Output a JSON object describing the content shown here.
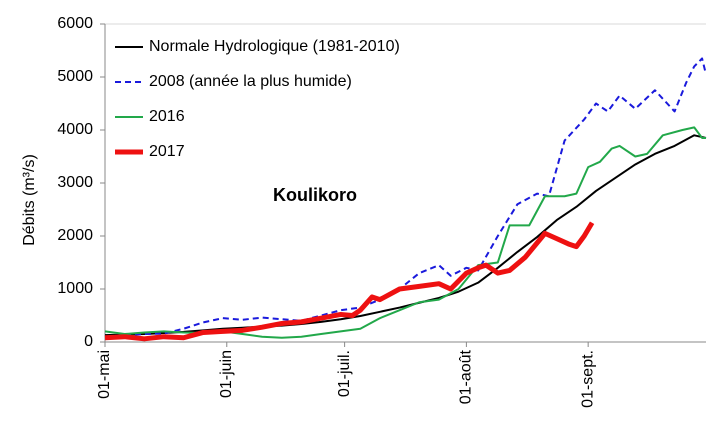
{
  "chart_data": {
    "type": "line",
    "title": "Koulikoro",
    "y_label": "Débits  (m³/s)",
    "xlim": [
      0,
      153
    ],
    "ylim": [
      0,
      6000
    ],
    "yticks": [
      0,
      1000,
      2000,
      3000,
      4000,
      5000,
      6000
    ],
    "xticks": [
      {
        "value": 0,
        "label": "01-mai"
      },
      {
        "value": 31,
        "label": "01-juin"
      },
      {
        "value": 61,
        "label": "01-juil."
      },
      {
        "value": 92,
        "label": "01-août"
      },
      {
        "value": 123,
        "label": "01-sept."
      }
    ],
    "grid": false,
    "legend": "upper left",
    "series": [
      {
        "name": "Normale Hydrologique (1981-2010)",
        "color": "#000000",
        "line_style": "solid",
        "linewidth": 2,
        "x": [
          0,
          5,
          10,
          15,
          20,
          25,
          30,
          35,
          40,
          45,
          50,
          55,
          60,
          65,
          70,
          75,
          80,
          85,
          90,
          95,
          100,
          105,
          110,
          115,
          120,
          125,
          130,
          135,
          140,
          145,
          150,
          153
        ],
        "values": [
          130,
          140,
          150,
          170,
          190,
          220,
          250,
          270,
          290,
          310,
          340,
          380,
          430,
          490,
          570,
          650,
          740,
          830,
          950,
          1120,
          1400,
          1700,
          1980,
          2300,
          2550,
          2850,
          3100,
          3350,
          3550,
          3700,
          3900,
          3850
        ]
      },
      {
        "name": "2008 (année la plus humide)",
        "color": "#1a1adc",
        "line_style": "dashed",
        "linewidth": 2,
        "x": [
          0,
          5,
          10,
          15,
          20,
          25,
          30,
          35,
          40,
          45,
          50,
          55,
          60,
          65,
          70,
          75,
          80,
          85,
          88,
          92,
          95,
          100,
          105,
          110,
          113,
          117,
          122,
          125,
          128,
          131,
          135,
          140,
          145,
          148,
          150,
          152,
          153
        ],
        "values": [
          100,
          130,
          150,
          160,
          250,
          370,
          450,
          420,
          460,
          430,
          400,
          500,
          600,
          650,
          800,
          1000,
          1300,
          1450,
          1250,
          1400,
          1350,
          2000,
          2600,
          2800,
          2750,
          3800,
          4200,
          4500,
          4350,
          4650,
          4400,
          4750,
          4350,
          4900,
          5200,
          5350,
          5050
        ]
      },
      {
        "name": "2016",
        "color": "#22a84a",
        "line_style": "solid",
        "linewidth": 2,
        "x": [
          0,
          5,
          10,
          15,
          20,
          25,
          30,
          35,
          40,
          45,
          50,
          55,
          60,
          65,
          70,
          75,
          80,
          85,
          90,
          95,
          100,
          103,
          108,
          112,
          117,
          120,
          123,
          126,
          129,
          131,
          135,
          138,
          142,
          147,
          150,
          152,
          153
        ],
        "values": [
          200,
          150,
          180,
          200,
          180,
          170,
          200,
          150,
          100,
          80,
          100,
          150,
          200,
          250,
          450,
          600,
          750,
          800,
          1000,
          1450,
          1500,
          2200,
          2200,
          2750,
          2750,
          2800,
          3300,
          3400,
          3650,
          3700,
          3500,
          3550,
          3900,
          4000,
          4050,
          3850,
          3850
        ]
      },
      {
        "name": "2017",
        "color": "#ee1111",
        "line_style": "solid",
        "linewidth": 5,
        "x": [
          0,
          5,
          10,
          15,
          20,
          25,
          30,
          35,
          40,
          45,
          50,
          55,
          60,
          63,
          65,
          68,
          70,
          75,
          80,
          85,
          88,
          92,
          95,
          97,
          100,
          103,
          107,
          112,
          115,
          118,
          120,
          122,
          124
        ],
        "values": [
          80,
          100,
          60,
          100,
          80,
          180,
          200,
          220,
          280,
          350,
          380,
          450,
          520,
          500,
          600,
          850,
          800,
          1000,
          1050,
          1100,
          1000,
          1300,
          1400,
          1450,
          1300,
          1350,
          1600,
          2050,
          1950,
          1850,
          1800,
          2000,
          2250
        ]
      }
    ]
  }
}
